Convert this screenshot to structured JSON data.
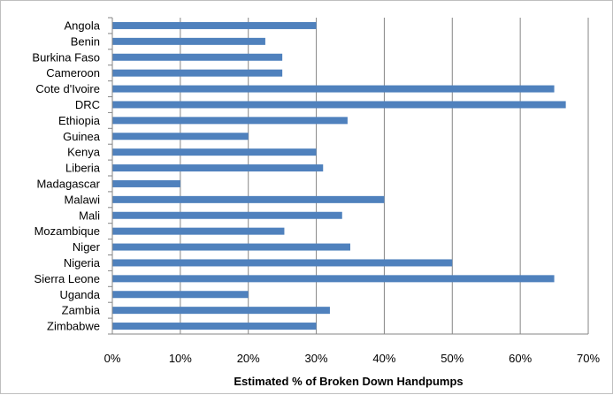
{
  "chart_data": {
    "type": "bar",
    "orientation": "horizontal",
    "title": "",
    "xlabel": "Estimated % of Broken Down Handpumps",
    "ylabel": "",
    "xlim": [
      0,
      70
    ],
    "x_ticks": [
      "0%",
      "10%",
      "20%",
      "30%",
      "40%",
      "50%",
      "60%",
      "70%"
    ],
    "grid": true,
    "legend": "none",
    "bar_color": "#4f81bd",
    "categories": [
      "Angola",
      "Benin",
      "Burkina Faso",
      "Cameroon",
      "Cote d'Ivoire",
      "DRC",
      "Ethiopia",
      "Guinea",
      "Kenya",
      "Liberia",
      "Madagascar",
      "Malawi",
      "Mali",
      "Mozambique",
      "Niger",
      "Nigeria",
      "Sierra Leone",
      "Uganda",
      "Zambia",
      "Zimbabwe"
    ],
    "values": [
      30,
      22.5,
      25,
      25,
      65,
      66.7,
      34.6,
      20,
      30,
      31,
      10,
      40,
      33.8,
      25.3,
      35,
      50,
      65,
      20,
      32,
      30
    ]
  }
}
